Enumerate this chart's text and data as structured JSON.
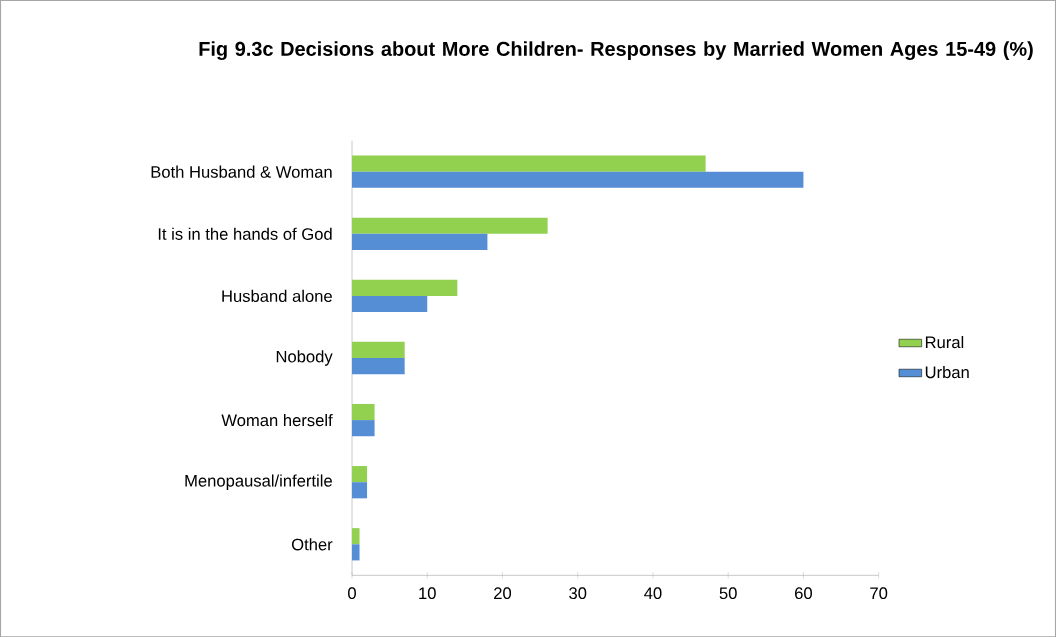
{
  "chart_data": {
    "type": "bar",
    "orientation": "horizontal",
    "title": "Fig 9.3c Decisions about  More Children- Responses by Married Women Ages 15-49 (%)",
    "categories": [
      "Both Husband & Woman",
      "It is in the hands of God",
      "Husband alone",
      "Nobody",
      "Woman herself",
      "Menopausal/infertile",
      "Other"
    ],
    "series": [
      {
        "name": "Rural",
        "color": "#92d050",
        "values": [
          47,
          26,
          14,
          7,
          3,
          2,
          1
        ]
      },
      {
        "name": "Urban",
        "color": "#558ed5",
        "values": [
          60,
          18,
          10,
          7,
          3,
          2,
          1
        ]
      }
    ],
    "xlim": [
      0,
      70
    ],
    "xticks": [
      0,
      10,
      20,
      30,
      40,
      50,
      60,
      70
    ],
    "legend": "right"
  }
}
